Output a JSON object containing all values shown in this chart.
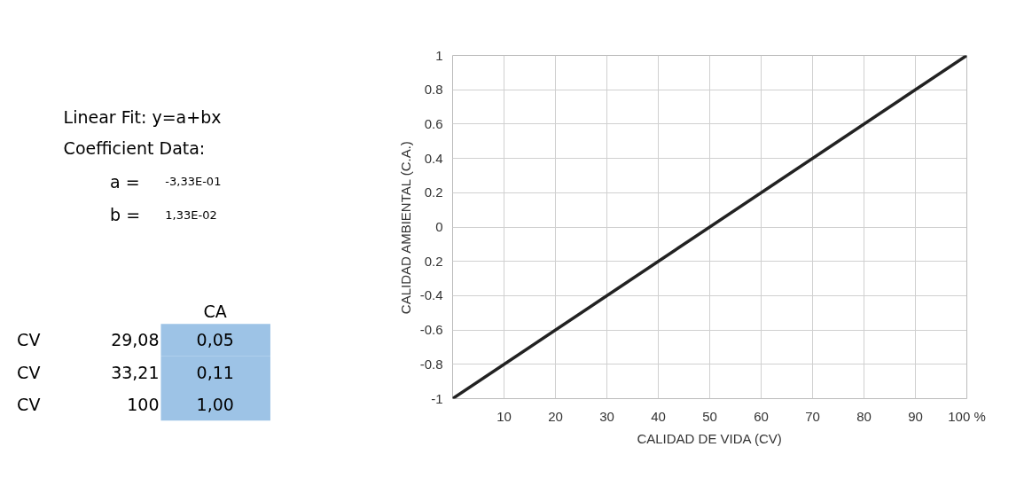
{
  "chart_data": {
    "type": "line",
    "xlabel": "CALIDAD DE VIDA (CV)",
    "ylabel": "CALIDAD AMBIENTAL (C.A.)",
    "x": [
      0,
      100
    ],
    "series": [
      {
        "color": "#222222",
        "values": [
          -1,
          1
        ]
      }
    ],
    "xlim": [
      0,
      100
    ],
    "ylim": [
      -1,
      1
    ],
    "xticks": [
      10,
      20,
      30,
      40,
      50,
      60,
      70,
      80,
      90,
      {
        "value": 100,
        "label": "100 %"
      }
    ],
    "yticks": [
      1,
      0.8,
      0.6,
      0.4,
      0.2,
      0,
      {
        "value": -0.2,
        "label": "0.2"
      },
      -0.4,
      -0.6,
      -0.8,
      -1
    ],
    "grid": true,
    "marker": "none",
    "line_style": "solid",
    "annotations": [
      "Linear Fit:  y=a+bx",
      "Coefficient Data:",
      "a =",
      "-3,33E-01",
      "b =",
      "1,33E-02",
      "CA",
      "CV",
      "29,08",
      "0,05",
      "CV",
      "33,21",
      "0,11",
      "CV",
      "100",
      "1,00"
    ]
  }
}
